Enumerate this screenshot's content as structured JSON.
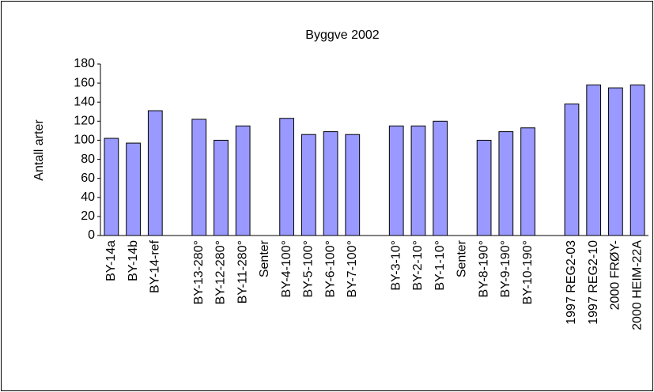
{
  "chart_data": {
    "type": "bar",
    "title": "Byggve 2002",
    "y_label": "Antall arter",
    "categories": [
      "BY-14a",
      "BY-14b",
      "BY-14-ref",
      null,
      "BY-13-280°",
      "BY-12-280°",
      "BY-11-280°",
      "Senter",
      "BY-4-100°",
      "BY-5-100°",
      "BY-6-100°",
      "BY-7-100°",
      null,
      "BY-3-10°",
      "BY-2-10°",
      "BY-1-10°",
      "Senter",
      "BY-8-190°",
      "BY-9-190°",
      "BY-10-190°",
      null,
      "1997 REG2-03",
      "1997 REG2-10",
      "2000 FRØY-",
      "2000 HEIM-22A"
    ],
    "values": [
      102,
      97,
      131,
      null,
      122,
      100,
      115,
      null,
      123,
      106,
      109,
      106,
      null,
      115,
      115,
      120,
      null,
      100,
      109,
      113,
      null,
      138,
      158,
      155,
      158
    ],
    "color": "#9999ff",
    "ylim": [
      0,
      180
    ],
    "yticks": [
      0,
      20,
      40,
      60,
      80,
      100,
      120,
      140,
      160,
      180
    ],
    "grid": false
  }
}
